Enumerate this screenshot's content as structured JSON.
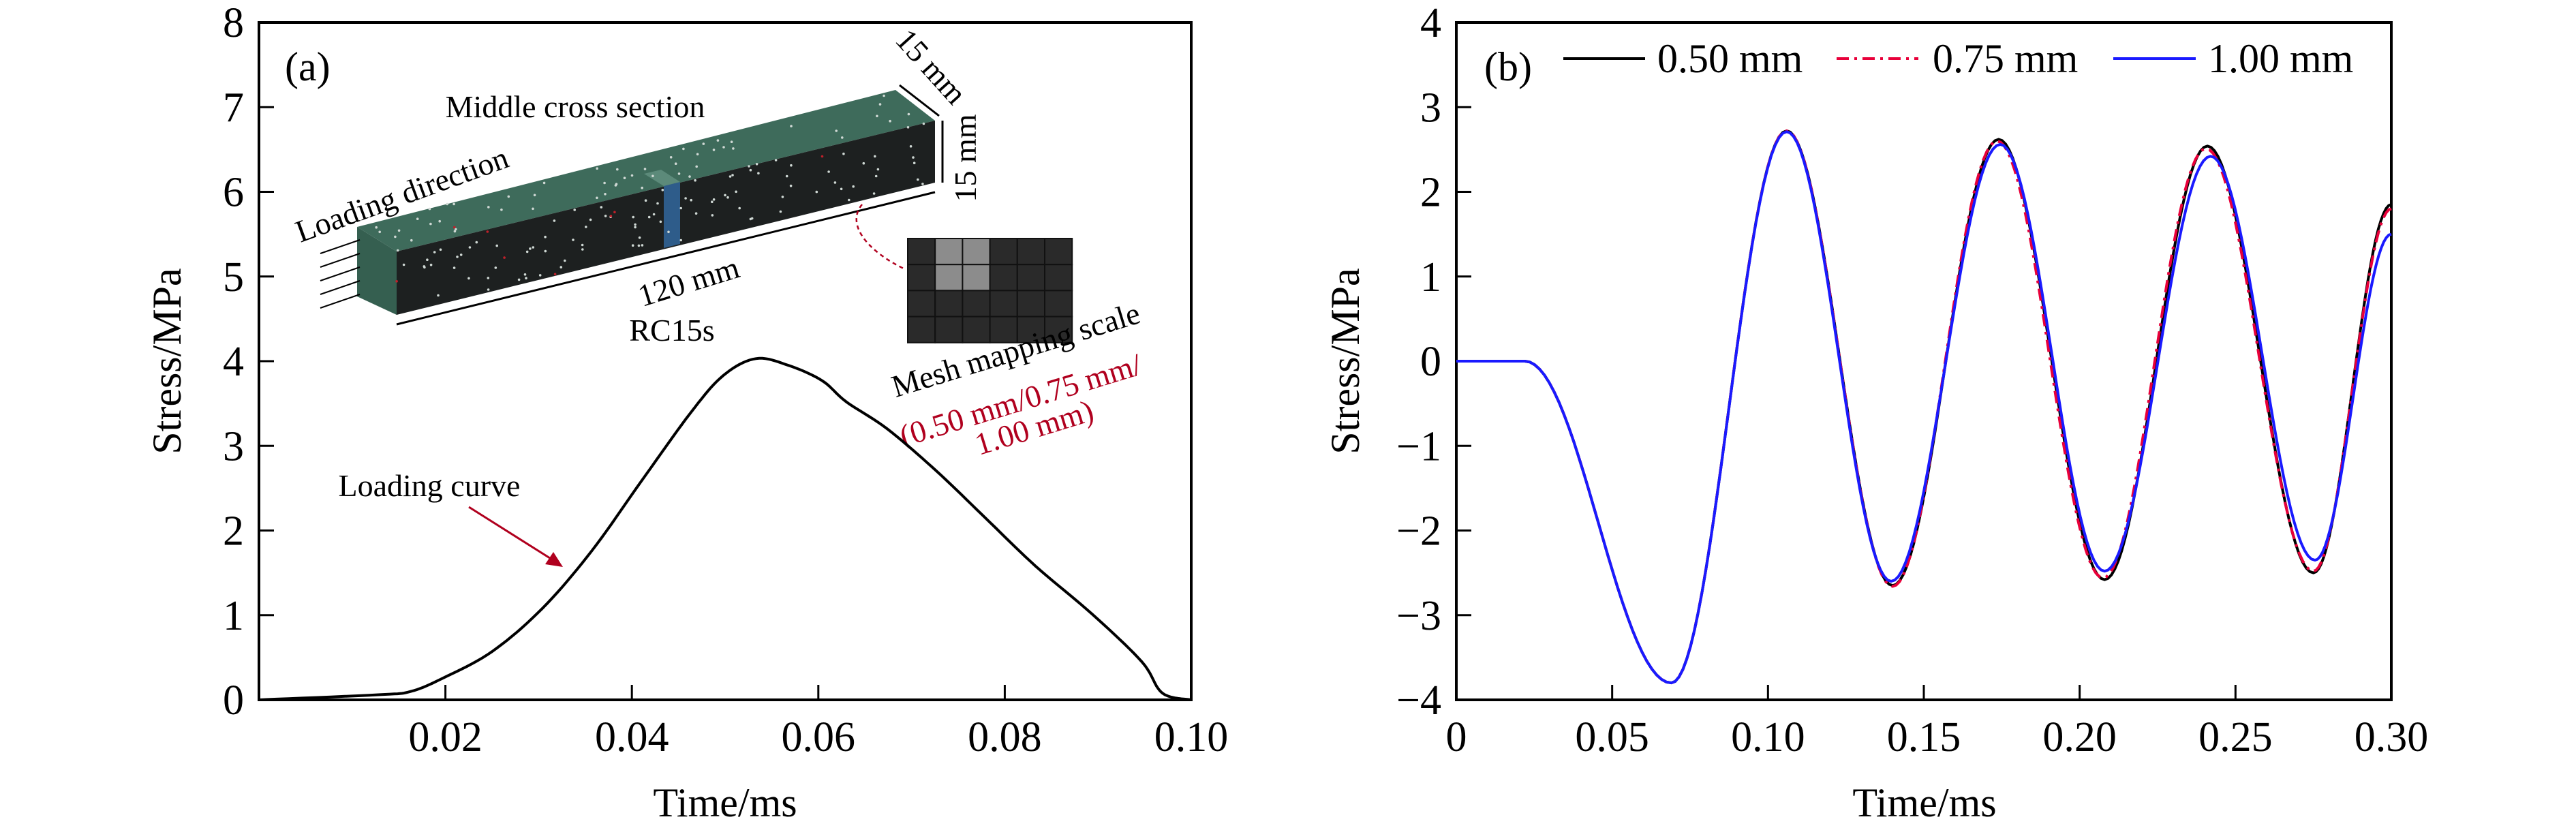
{
  "chart_data": [
    {
      "type": "line",
      "panel_label": "(a)",
      "xlabel": "Time/ms",
      "ylabel": "Stress/MPa",
      "xlim": [
        0,
        0.1
      ],
      "ylim": [
        0,
        8
      ],
      "xticks": [
        "0.02",
        "0.04",
        "0.06",
        "0.08",
        "0.10"
      ],
      "xtick_values": [
        0.02,
        0.04,
        0.06,
        0.08,
        0.1
      ],
      "yticks": [
        "0",
        "1",
        "2",
        "3",
        "4",
        "5",
        "6",
        "7",
        "8"
      ],
      "ytick_values": [
        0,
        1,
        2,
        3,
        4,
        5,
        6,
        7,
        8
      ],
      "grid": false,
      "series": [
        {
          "color": "#000000",
          "x": [
            0,
            0.0128,
            0.0163,
            0.0198,
            0.025,
            0.0304,
            0.0357,
            0.041,
            0.0463,
            0.0498,
            0.0533,
            0.0568,
            0.0604,
            0.063,
            0.0674,
            0.0727,
            0.078,
            0.0833,
            0.0894,
            0.0947,
            0.0969,
            0.1
          ],
          "y": [
            0,
            0.06,
            0.1,
            0.26,
            0.57,
            1.08,
            1.76,
            2.58,
            3.39,
            3.83,
            4.03,
            3.95,
            3.77,
            3.52,
            3.2,
            2.7,
            2.14,
            1.58,
            1.01,
            0.45,
            0.08,
            0
          ]
        }
      ],
      "annotations": {
        "loading_curve": "Loading curve",
        "middle_cross_section": "Middle cross section",
        "loading_direction": "Loading direction",
        "width": "15 mm",
        "height": "15 mm",
        "length": "120 mm",
        "specimen": "RC15s",
        "mesh_scale": "Mesh mapping scale",
        "mesh_sizes_1": "(0.50 mm/0.75 mm/",
        "mesh_sizes_2": "1.00 mm)"
      },
      "colors": {
        "annotation_red": "#b0001e",
        "beam_top": "#3e6b5b",
        "beam_front": "#1d2020",
        "middle_section": "#2e5c8a"
      }
    },
    {
      "type": "line",
      "panel_label": "(b)",
      "xlabel": "Time/ms",
      "ylabel": "Stress/MPa",
      "xlim": [
        0,
        0.3
      ],
      "ylim": [
        -4,
        4
      ],
      "xticks": [
        "0",
        "0.05",
        "0.10",
        "0.15",
        "0.20",
        "0.25",
        "0.30"
      ],
      "xtick_values": [
        0,
        0.05,
        0.1,
        0.15,
        0.2,
        0.25,
        0.3
      ],
      "yticks": [
        "−4",
        "−3",
        "−2",
        "−1",
        "0",
        "1",
        "2",
        "3",
        "4"
      ],
      "ytick_values": [
        -4,
        -3,
        -2,
        -1,
        0,
        1,
        2,
        3,
        4
      ],
      "grid": false,
      "legend": "top",
      "series": [
        {
          "name": "0.50 mm",
          "color": "#000000",
          "dash": "solid",
          "x": [
            0,
            0.022,
            0.069,
            0.106,
            0.14,
            0.174,
            0.208,
            0.241,
            0.275,
            0.3
          ],
          "y": [
            0,
            0,
            -3.8,
            2.72,
            -2.65,
            2.62,
            -2.58,
            2.54,
            -2.5,
            1.85
          ]
        },
        {
          "name": "0.75 mm",
          "color": "#e8003a",
          "dash": "dashdot",
          "x": [
            0,
            0.022,
            0.069,
            0.106,
            0.14,
            0.1735,
            0.2075,
            0.2405,
            0.275,
            0.3
          ],
          "y": [
            0,
            0,
            -3.8,
            2.72,
            -2.66,
            2.6,
            -2.56,
            2.51,
            -2.48,
            1.8
          ]
        },
        {
          "name": "1.00 mm",
          "color": "#1a1aff",
          "dash": "solid",
          "x": [
            0,
            0.022,
            0.069,
            0.106,
            0.1395,
            0.1745,
            0.208,
            0.242,
            0.2755,
            0.3
          ],
          "y": [
            0,
            0,
            -3.8,
            2.71,
            -2.6,
            2.56,
            -2.48,
            2.42,
            -2.35,
            1.5
          ]
        }
      ]
    }
  ]
}
